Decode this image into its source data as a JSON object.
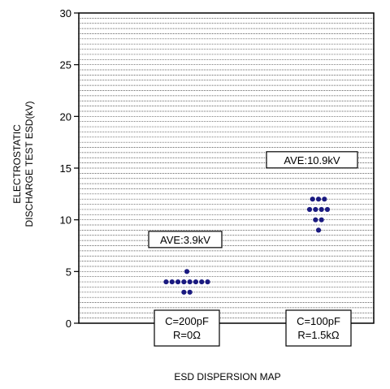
{
  "chart_data": {
    "type": "scatter",
    "title": "",
    "xlabel": "ESD DISPERSION MAP",
    "ylabel_lines": [
      "ELECTROSTATIC",
      "DISCHARGE TEST ESD(kV)"
    ],
    "ylim": [
      0,
      30
    ],
    "y_ticks": [
      0,
      5,
      10,
      15,
      20,
      25,
      30
    ],
    "minor_grid_step": 1,
    "grid": true,
    "marker_color": "#1a1a80",
    "groups": [
      {
        "condition": {
          "line1": "C=200pF",
          "line2": "R=0Ω"
        },
        "average_label": "AVE:3.9kV",
        "points": [
          {
            "value": 3,
            "count": 2
          },
          {
            "value": 4,
            "count": 8
          },
          {
            "value": 5,
            "count": 1
          }
        ]
      },
      {
        "condition": {
          "line1": "C=100pF",
          "line2": "R=1.5kΩ"
        },
        "average_label": "AVE:10.9kV",
        "points": [
          {
            "value": 9,
            "count": 1
          },
          {
            "value": 10,
            "count": 2
          },
          {
            "value": 11,
            "count": 4
          },
          {
            "value": 12,
            "count": 3
          }
        ]
      }
    ]
  }
}
